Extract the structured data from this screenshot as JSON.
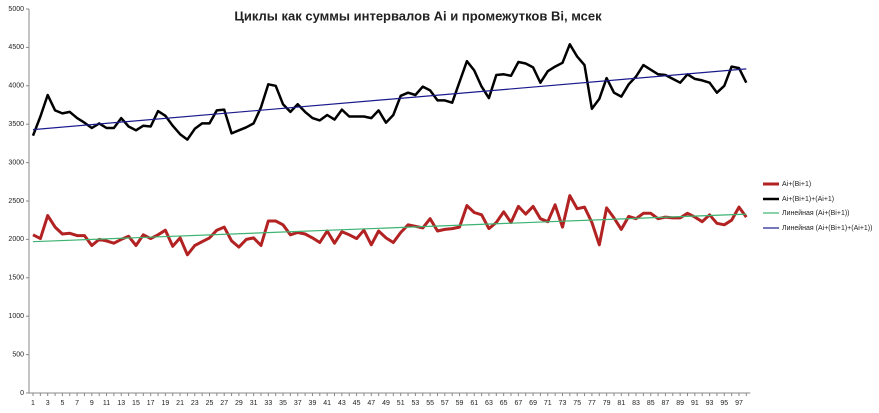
{
  "chart_data": {
    "type": "line",
    "title": "Циклы как суммы интервалов Ai и промежутков Bi, мсек",
    "categories": [
      1,
      null,
      3,
      null,
      5,
      null,
      7,
      null,
      9,
      null,
      11,
      null,
      13,
      null,
      15,
      null,
      17,
      null,
      19,
      null,
      21,
      null,
      23,
      null,
      25,
      null,
      27,
      null,
      29,
      null,
      31,
      null,
      33,
      null,
      35,
      null,
      37,
      null,
      39,
      null,
      41,
      null,
      43,
      null,
      45,
      null,
      47,
      null,
      49,
      null,
      51,
      null,
      53,
      null,
      55,
      null,
      57,
      null,
      59,
      null,
      61,
      null,
      63,
      null,
      65,
      null,
      67,
      null,
      69,
      null,
      71,
      null,
      73,
      null,
      75,
      null,
      77,
      null,
      79,
      null,
      81,
      null,
      83,
      null,
      85,
      null,
      87,
      null,
      89,
      null,
      91,
      null,
      93,
      null,
      95,
      null,
      97,
      null
    ],
    "ylim": [
      0,
      5000
    ],
    "yticks": [
      0,
      500,
      1000,
      1500,
      2000,
      2500,
      3000,
      3500,
      4000,
      4500,
      5000
    ],
    "grid": false,
    "legend": "right",
    "series": [
      {
        "name": "Ai+(Bi+1)",
        "color": "#b22222",
        "width": 3,
        "values": [
          2060,
          2010,
          2310,
          2160,
          2070,
          2080,
          2050,
          2050,
          1920,
          2000,
          1980,
          1950,
          2000,
          2040,
          1920,
          2060,
          2010,
          2060,
          2120,
          1910,
          2020,
          1800,
          1920,
          1970,
          2020,
          2120,
          2160,
          1980,
          1900,
          2000,
          2020,
          1920,
          2240,
          2240,
          2190,
          2060,
          2090,
          2070,
          2020,
          1960,
          2110,
          1950,
          2100,
          2060,
          2010,
          2120,
          1930,
          2110,
          2020,
          1960,
          2090,
          2190,
          2170,
          2150,
          2270,
          2110,
          2130,
          2140,
          2160,
          2440,
          2350,
          2320,
          2140,
          2220,
          2360,
          2220,
          2430,
          2330,
          2430,
          2270,
          2230,
          2450,
          2160,
          2570,
          2400,
          2420,
          2220,
          1930,
          2410,
          2280,
          2130,
          2300,
          2270,
          2340,
          2340,
          2270,
          2290,
          2280,
          2280,
          2340,
          2290,
          2230,
          2320,
          2210,
          2190,
          2250,
          2420,
          2290
        ]
      },
      {
        "name": "Ai+(Bi+1)+(Ai+1)",
        "color": "#000000",
        "width": 2.5,
        "values": [
          3350,
          3600,
          3880,
          3680,
          3640,
          3660,
          3580,
          3520,
          3450,
          3510,
          3450,
          3450,
          3580,
          3470,
          3420,
          3480,
          3470,
          3670,
          3610,
          3480,
          3370,
          3300,
          3440,
          3510,
          3510,
          3680,
          3690,
          3380,
          3420,
          3460,
          3510,
          3720,
          4020,
          4000,
          3760,
          3660,
          3760,
          3660,
          3580,
          3550,
          3620,
          3560,
          3690,
          3600,
          3600,
          3600,
          3580,
          3680,
          3520,
          3620,
          3870,
          3910,
          3880,
          3990,
          3940,
          3810,
          3810,
          3780,
          4050,
          4320,
          4200,
          3990,
          3840,
          4140,
          4150,
          4130,
          4310,
          4290,
          4240,
          4040,
          4190,
          4250,
          4300,
          4540,
          4380,
          4270,
          3700,
          3830,
          4100,
          3910,
          3860,
          4020,
          4120,
          4270,
          4210,
          4150,
          4140,
          4090,
          4040,
          4150,
          4090,
          4070,
          4040,
          3910,
          4000,
          4250,
          4230,
          4040
        ]
      },
      {
        "name": "Линейная (Ai+(Bi+1))",
        "color": "#3cb371",
        "width": 1.2,
        "x": [
          1,
          98
        ],
        "values": [
          1970,
          2330
        ]
      },
      {
        "name": "Линейная (Ai+(Bi+1)+(Ai+1))",
        "color": "#1a1a8c",
        "width": 1.2,
        "x": [
          1,
          98
        ],
        "values": [
          3430,
          4220
        ]
      }
    ]
  }
}
